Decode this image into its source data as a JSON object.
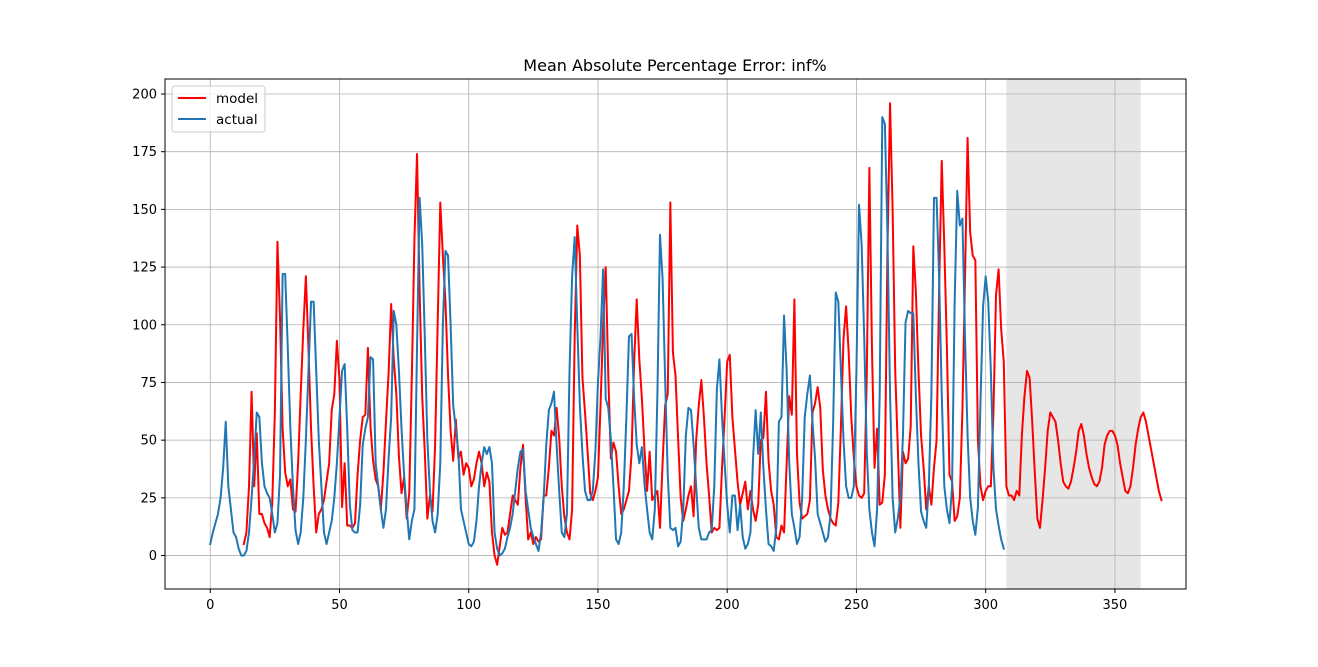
{
  "chart_data": {
    "type": "line",
    "title": "Mean Absolute Percentage Error: inf%",
    "xlabel": "",
    "ylabel": "",
    "xlim": [
      -17.5,
      377.5
    ],
    "ylim": [
      -14.5,
      206.5
    ],
    "xticks": [
      0,
      50,
      100,
      150,
      200,
      250,
      300,
      350
    ],
    "yticks": [
      0,
      25,
      50,
      75,
      100,
      125,
      150,
      175,
      200
    ],
    "xtick_labels": [
      "0",
      "50",
      "100",
      "150",
      "200",
      "250",
      "300",
      "350"
    ],
    "ytick_labels": [
      "0",
      "25",
      "50",
      "75",
      "100",
      "125",
      "150",
      "175",
      "200"
    ],
    "grid": true,
    "legend_position": "upper-left",
    "shaded_region": {
      "x_start": 308,
      "x_end": 360,
      "color": "#e6e6e6"
    },
    "series": [
      {
        "name": "model",
        "color": "#ff0000",
        "x_start": 13,
        "values": [
          5,
          10,
          30,
          71,
          30,
          53,
          18,
          18,
          14,
          12,
          8,
          23,
          62,
          136,
          103,
          55,
          36,
          30,
          33,
          20,
          19,
          40,
          70,
          98,
          121,
          90,
          55,
          30,
          10,
          18,
          20,
          24,
          32,
          40,
          63,
          70,
          93,
          76,
          21,
          40,
          13,
          13,
          12,
          14,
          35,
          50,
          60,
          61,
          90,
          56,
          41,
          33,
          30,
          20,
          36,
          58,
          79,
          109,
          85,
          70,
          43,
          27,
          34,
          16,
          27,
          78,
          137,
          174,
          115,
          69,
          45,
          16,
          26,
          19,
          48,
          101,
          153,
          130,
          110,
          78,
          54,
          41,
          59,
          42,
          45,
          35,
          40,
          38,
          30,
          33,
          40,
          45,
          40,
          30,
          36,
          32,
          10,
          0,
          -4,
          4,
          12,
          9,
          10,
          18,
          26,
          24,
          22,
          38,
          48,
          25,
          7,
          10,
          5,
          8,
          6,
          7,
          26,
          26,
          38,
          54,
          52,
          64,
          51,
          30,
          17,
          10,
          7,
          20,
          95,
          143,
          130,
          77,
          62,
          45,
          27,
          24,
          28,
          34,
          65,
          100,
          125,
          78,
          42,
          49,
          45,
          30,
          18,
          20,
          24,
          28,
          44,
          84,
          111,
          85,
          68,
          46,
          28,
          45,
          24,
          26,
          28,
          12,
          40,
          65,
          70,
          153,
          88,
          78,
          51,
          25,
          15,
          20,
          26,
          30,
          17,
          50,
          65,
          76,
          60,
          40,
          26,
          10,
          12,
          11,
          12,
          38,
          60,
          84,
          87,
          60,
          46,
          32,
          22,
          27,
          32,
          20,
          28,
          20,
          15,
          22,
          50,
          51,
          71,
          41,
          28,
          22,
          8,
          7,
          13,
          10,
          40,
          69,
          61,
          111,
          44,
          23,
          16,
          17,
          18,
          24,
          62,
          66,
          73,
          64,
          37,
          26,
          20,
          16,
          14,
          13,
          23,
          56,
          94,
          108,
          88,
          60,
          42,
          30,
          26,
          25,
          27,
          78,
          168,
          90,
          38,
          55,
          22,
          23,
          35,
          132,
          196,
          150,
          80,
          47,
          12,
          45,
          40,
          42,
          56,
          134,
          114,
          80,
          52,
          38,
          20,
          30,
          22,
          38,
          50,
          116,
          171,
          134,
          90,
          35,
          32,
          15,
          17,
          25,
          63,
          120,
          181,
          140,
          130,
          128,
          50,
          30,
          24,
          28,
          30,
          30,
          62,
          113,
          124,
          98,
          84,
          30,
          26,
          26,
          24,
          28,
          26,
          52,
          69,
          80,
          77,
          58,
          36,
          16,
          12,
          24,
          38,
          54,
          62,
          60,
          58,
          50,
          40,
          32,
          30,
          29,
          32,
          38,
          45,
          54,
          57,
          52,
          44,
          38,
          34,
          31,
          30,
          32,
          38,
          48,
          52,
          54,
          54,
          52,
          48,
          40,
          34,
          28,
          27,
          30,
          38,
          48,
          55,
          60,
          62,
          58,
          52,
          46,
          40,
          34,
          28,
          24
        ]
      },
      {
        "name": "actual",
        "color": "#1f77b4",
        "x_start": 0,
        "values": [
          5,
          10,
          14,
          18,
          25,
          38,
          58,
          30,
          20,
          10,
          8,
          3,
          0,
          0,
          2,
          10,
          25,
          42,
          62,
          60,
          40,
          30,
          27,
          25,
          18,
          10,
          14,
          35,
          122,
          122,
          90,
          55,
          30,
          11,
          5,
          10,
          25,
          50,
          80,
          110,
          110,
          80,
          50,
          30,
          10,
          5,
          10,
          15,
          25,
          40,
          60,
          80,
          83,
          55,
          22,
          11,
          10,
          10,
          22,
          48,
          55,
          60,
          86,
          85,
          40,
          30,
          20,
          12,
          20,
          42,
          60,
          106,
          100,
          80,
          55,
          35,
          20,
          7,
          15,
          20,
          90,
          155,
          135,
          95,
          50,
          28,
          15,
          10,
          18,
          40,
          100,
          132,
          130,
          100,
          65,
          55,
          45,
          20,
          15,
          10,
          5,
          4,
          6,
          15,
          30,
          40,
          47,
          44,
          47,
          40,
          10,
          3,
          0,
          1,
          3,
          8,
          12,
          18,
          28,
          38,
          45,
          46,
          28,
          20,
          12,
          8,
          5,
          2,
          10,
          25,
          48,
          63,
          66,
          71,
          48,
          28,
          10,
          8,
          18,
          80,
          121,
          138,
          100,
          65,
          44,
          28,
          24,
          24,
          28,
          45,
          75,
          95,
          124,
          68,
          64,
          50,
          30,
          7,
          5,
          10,
          30,
          60,
          95,
          96,
          68,
          48,
          40,
          47,
          31,
          20,
          10,
          7,
          20,
          70,
          139,
          120,
          76,
          35,
          12,
          11,
          12,
          4,
          6,
          20,
          52,
          64,
          63,
          48,
          30,
          12,
          7,
          7,
          7,
          10,
          11,
          30,
          72,
          85,
          60,
          40,
          22,
          10,
          26,
          26,
          11,
          22,
          8,
          3,
          5,
          10,
          42,
          63,
          44,
          62,
          38,
          20,
          5,
          4,
          2,
          12,
          58,
          60,
          104,
          80,
          40,
          18,
          12,
          5,
          8,
          25,
          60,
          70,
          78,
          58,
          42,
          18,
          14,
          10,
          6,
          8,
          18,
          58,
          114,
          110,
          80,
          50,
          30,
          25,
          25,
          30,
          80,
          152,
          135,
          95,
          45,
          20,
          10,
          4,
          20,
          70,
          190,
          187,
          140,
          70,
          25,
          10,
          16,
          25,
          52,
          101,
          106,
          105,
          105,
          69,
          40,
          19,
          15,
          12,
          30,
          70,
          155,
          155,
          120,
          70,
          30,
          20,
          14,
          30,
          110,
          158,
          143,
          146,
          95,
          52,
          25,
          15,
          9,
          21,
          67,
          108,
          121,
          110,
          80,
          38,
          20,
          13,
          7,
          3
        ]
      }
    ]
  }
}
